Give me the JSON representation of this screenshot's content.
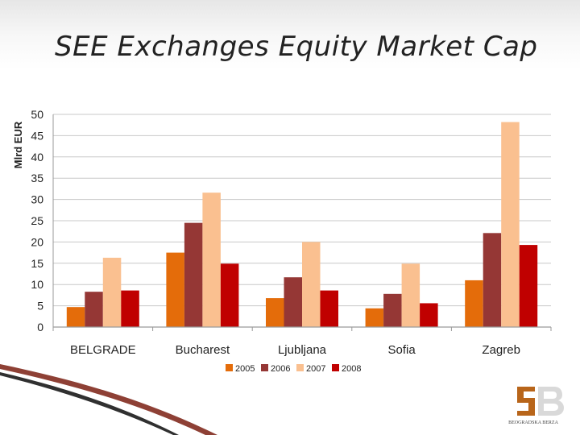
{
  "slide": {
    "title": "SEE Exchanges Equity Market Cap"
  },
  "logo": {
    "name": "belgrade-stock-exchange-logo",
    "text": "BEOGRADSKA BERZA"
  },
  "colors": {
    "2005": "#e46c0a",
    "2006": "#953735",
    "2007": "#fac090",
    "2008": "#c00000",
    "grid": "#c8c8c8",
    "accent_stroke": "#7a1f12"
  },
  "chart_data": {
    "type": "bar",
    "title": "",
    "xlabel": "",
    "ylabel": "Mlrd EUR",
    "ylim": [
      0,
      50
    ],
    "yticks": [
      0,
      5,
      10,
      15,
      20,
      25,
      30,
      35,
      40,
      45,
      50
    ],
    "grid": true,
    "legend_position": "bottom",
    "categories": [
      "BELGRADE",
      "Bucharest",
      "Ljubljana",
      "Sofia",
      "Zagreb"
    ],
    "series": [
      {
        "name": "2005",
        "values": [
          4.7,
          17.5,
          6.8,
          4.4,
          11.0
        ]
      },
      {
        "name": "2006",
        "values": [
          8.3,
          24.5,
          11.7,
          7.8,
          22.1
        ]
      },
      {
        "name": "2007",
        "values": [
          16.3,
          31.6,
          20.0,
          14.9,
          48.2
        ]
      },
      {
        "name": "2008",
        "values": [
          8.6,
          14.9,
          8.6,
          5.6,
          19.3
        ]
      }
    ]
  }
}
